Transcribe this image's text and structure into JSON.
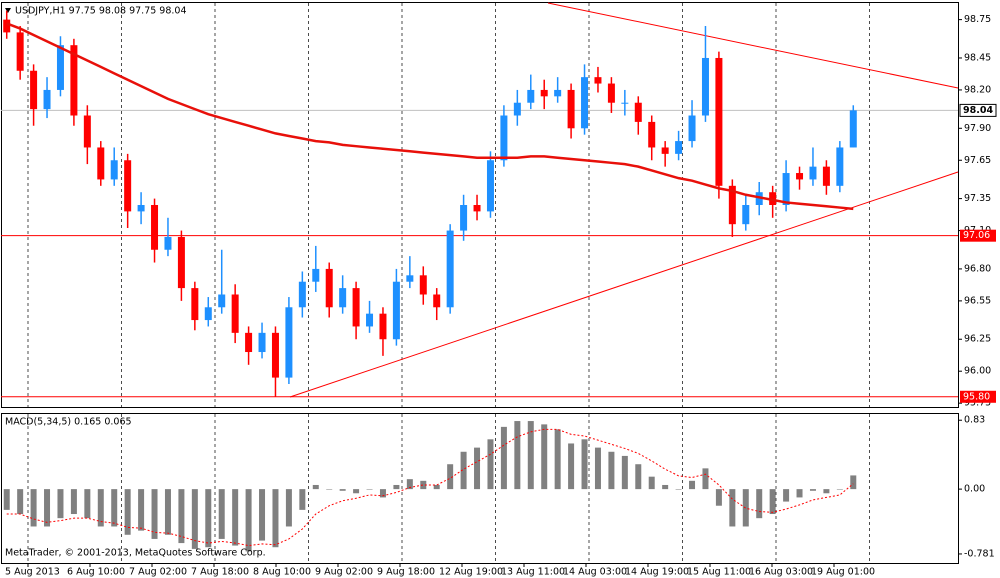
{
  "chart_data": [
    {
      "type": "candlestick",
      "title": "USDJPY,H1  97.75 98.08 97.75 98.04",
      "up_color": "#1e90ff",
      "down_color": "#ff0000",
      "open": [
        98.75,
        98.65,
        98.35,
        98.05,
        98.2,
        98.55,
        98.0,
        97.75,
        97.5,
        97.65,
        97.25,
        97.3,
        96.95,
        97.05,
        96.65,
        96.4,
        96.5,
        96.6,
        96.3,
        96.15,
        96.3,
        95.95,
        96.5,
        96.7,
        96.8,
        96.5,
        96.65,
        96.35,
        96.45,
        96.25,
        96.7,
        96.75,
        96.6,
        96.5,
        97.1,
        97.3,
        97.25,
        97.65,
        98.0,
        98.1,
        98.2,
        98.15,
        98.2,
        97.9,
        98.3,
        98.25,
        98.1,
        98.1,
        97.95,
        97.75,
        97.7,
        97.8,
        98.0,
        98.45,
        97.45,
        97.15,
        97.3,
        97.4,
        97.3,
        97.55,
        97.5,
        97.6,
        97.45,
        97.75
      ],
      "high": [
        98.82,
        98.7,
        98.4,
        98.3,
        98.62,
        98.6,
        98.08,
        97.8,
        97.75,
        97.7,
        97.4,
        97.35,
        97.2,
        97.1,
        96.7,
        96.58,
        96.95,
        96.68,
        96.35,
        96.38,
        96.35,
        96.58,
        96.78,
        96.98,
        96.85,
        96.75,
        96.7,
        96.55,
        96.5,
        96.8,
        96.9,
        96.82,
        96.65,
        97.15,
        97.38,
        97.38,
        97.72,
        98.08,
        98.2,
        98.32,
        98.28,
        98.3,
        98.25,
        98.4,
        98.38,
        98.3,
        98.2,
        98.15,
        98.0,
        97.8,
        97.88,
        98.12,
        98.7,
        98.5,
        97.5,
        97.38,
        97.48,
        97.45,
        97.65,
        97.6,
        97.75,
        97.65,
        97.8,
        98.08
      ],
      "low": [
        98.6,
        98.28,
        97.92,
        97.98,
        98.15,
        97.92,
        97.62,
        97.45,
        97.45,
        97.12,
        97.15,
        96.85,
        96.9,
        96.55,
        96.32,
        96.35,
        96.45,
        96.22,
        96.05,
        96.1,
        95.8,
        95.9,
        96.42,
        96.62,
        96.42,
        96.45,
        96.25,
        96.3,
        96.12,
        96.2,
        96.65,
        96.52,
        96.4,
        96.45,
        97.02,
        97.18,
        97.2,
        97.6,
        97.92,
        98.05,
        98.05,
        98.1,
        97.82,
        97.85,
        98.18,
        98.02,
        98.0,
        97.85,
        97.65,
        97.6,
        97.65,
        97.75,
        97.95,
        97.35,
        97.05,
        97.1,
        97.22,
        97.2,
        97.25,
        97.42,
        97.45,
        97.38,
        97.4,
        97.75
      ],
      "close": [
        98.65,
        98.35,
        98.05,
        98.2,
        98.55,
        98.0,
        97.75,
        97.5,
        97.65,
        97.25,
        97.3,
        96.95,
        97.05,
        96.65,
        96.4,
        96.5,
        96.6,
        96.3,
        96.15,
        96.3,
        95.95,
        96.5,
        96.7,
        96.8,
        96.5,
        96.65,
        96.35,
        96.45,
        96.25,
        96.7,
        96.75,
        96.6,
        96.5,
        97.1,
        97.3,
        97.25,
        97.65,
        98.0,
        98.1,
        98.2,
        98.15,
        98.2,
        97.9,
        98.3,
        98.25,
        98.1,
        98.1,
        97.95,
        97.75,
        97.7,
        97.8,
        98.0,
        98.45,
        97.45,
        97.15,
        97.3,
        97.4,
        97.3,
        97.55,
        97.5,
        97.6,
        97.45,
        97.75,
        98.04
      ],
      "moving_average": {
        "color": "#e8100a",
        "values": [
          98.72,
          98.68,
          98.63,
          98.58,
          98.53,
          98.48,
          98.43,
          98.38,
          98.33,
          98.28,
          98.23,
          98.18,
          98.13,
          98.09,
          98.05,
          98.01,
          97.98,
          97.95,
          97.92,
          97.89,
          97.86,
          97.84,
          97.82,
          97.8,
          97.79,
          97.77,
          97.76,
          97.75,
          97.74,
          97.73,
          97.72,
          97.71,
          97.7,
          97.69,
          97.68,
          97.67,
          97.67,
          97.67,
          97.67,
          97.68,
          97.68,
          97.67,
          97.66,
          97.65,
          97.64,
          97.63,
          97.62,
          97.6,
          97.57,
          97.54,
          97.51,
          97.49,
          97.46,
          97.43,
          97.41,
          97.38,
          97.36,
          97.34,
          97.32,
          97.31,
          97.3,
          97.29,
          97.28,
          97.27
        ]
      },
      "last_price": {
        "value": 98.04,
        "label": "98.04"
      },
      "levels": [
        {
          "value": 97.06,
          "label": "97.06"
        },
        {
          "value": 95.8,
          "label": "95.80"
        }
      ],
      "ylim": [
        95.72,
        98.88
      ],
      "yticks": [
        {
          "value": 98.75,
          "label": "98.75"
        },
        {
          "value": 98.45,
          "label": "98.45"
        },
        {
          "value": 98.2,
          "label": "98.20"
        },
        {
          "value": 97.9,
          "label": "97.90"
        },
        {
          "value": 97.65,
          "label": "97.65"
        },
        {
          "value": 97.35,
          "label": "97.35"
        },
        {
          "value": 97.1,
          "label": "97.10"
        },
        {
          "value": 96.8,
          "label": "96.80"
        },
        {
          "value": 96.55,
          "label": "96.55"
        },
        {
          "value": 96.25,
          "label": "96.25"
        },
        {
          "value": 96.0,
          "label": "96.00"
        },
        {
          "value": 95.75,
          "label": "95.75"
        }
      ],
      "x_labels": [
        "5 Aug 2013",
        "6 Aug 10:00",
        "7 Aug 02:00",
        "7 Aug 18:00",
        "8 Aug 10:00",
        "9 Aug 02:00",
        "9 Aug 18:00",
        "12 Aug 19:00",
        "13 Aug 11:00",
        "14 Aug 03:00",
        "14 Aug 19:00",
        "15 Aug 11:00",
        "16 Aug 03:00",
        "19 Aug 01:00"
      ]
    },
    {
      "type": "bar",
      "title": "MACD(5,34,5) 0.165 0.065",
      "color": "#808080",
      "values": [
        -0.25,
        -0.3,
        -0.45,
        -0.45,
        -0.35,
        -0.3,
        -0.35,
        -0.45,
        -0.45,
        -0.55,
        -0.5,
        -0.6,
        -0.55,
        -0.65,
        -0.72,
        -0.7,
        -0.6,
        -0.68,
        -0.75,
        -0.62,
        -0.7,
        -0.45,
        -0.25,
        0.05,
        0.0,
        -0.02,
        -0.05,
        0.0,
        -0.1,
        0.05,
        0.12,
        0.1,
        0.05,
        0.3,
        0.45,
        0.5,
        0.6,
        0.75,
        0.82,
        0.82,
        0.78,
        0.72,
        0.55,
        0.6,
        0.5,
        0.45,
        0.4,
        0.3,
        0.15,
        0.05,
        0.0,
        0.1,
        0.25,
        -0.2,
        -0.45,
        -0.45,
        -0.35,
        -0.3,
        -0.15,
        -0.1,
        -0.02,
        -0.05,
        0.0,
        0.165
      ],
      "signal": {
        "color": "#ff0000",
        "values": [
          -0.3,
          -0.3,
          -0.36,
          -0.4,
          -0.38,
          -0.35,
          -0.35,
          -0.39,
          -0.41,
          -0.46,
          -0.47,
          -0.52,
          -0.53,
          -0.57,
          -0.62,
          -0.65,
          -0.63,
          -0.65,
          -0.68,
          -0.66,
          -0.67,
          -0.6,
          -0.48,
          -0.3,
          -0.2,
          -0.14,
          -0.11,
          -0.07,
          -0.08,
          -0.04,
          0.02,
          0.05,
          0.05,
          0.13,
          0.24,
          0.33,
          0.42,
          0.53,
          0.63,
          0.69,
          0.72,
          0.72,
          0.66,
          0.64,
          0.59,
          0.54,
          0.49,
          0.43,
          0.34,
          0.24,
          0.16,
          0.14,
          0.18,
          0.05,
          -0.12,
          -0.23,
          -0.27,
          -0.28,
          -0.24,
          -0.19,
          -0.13,
          -0.1,
          -0.07,
          0.065
        ]
      },
      "ylim": [
        -0.89,
        0.917
      ],
      "yticks": [
        0.83,
        {
          "value": 0,
          "label": "0.00"
        },
        -0.781
      ],
      "annotation": "MetaTrader, © 2001-2013, MetaQuotes Software Corp."
    }
  ]
}
